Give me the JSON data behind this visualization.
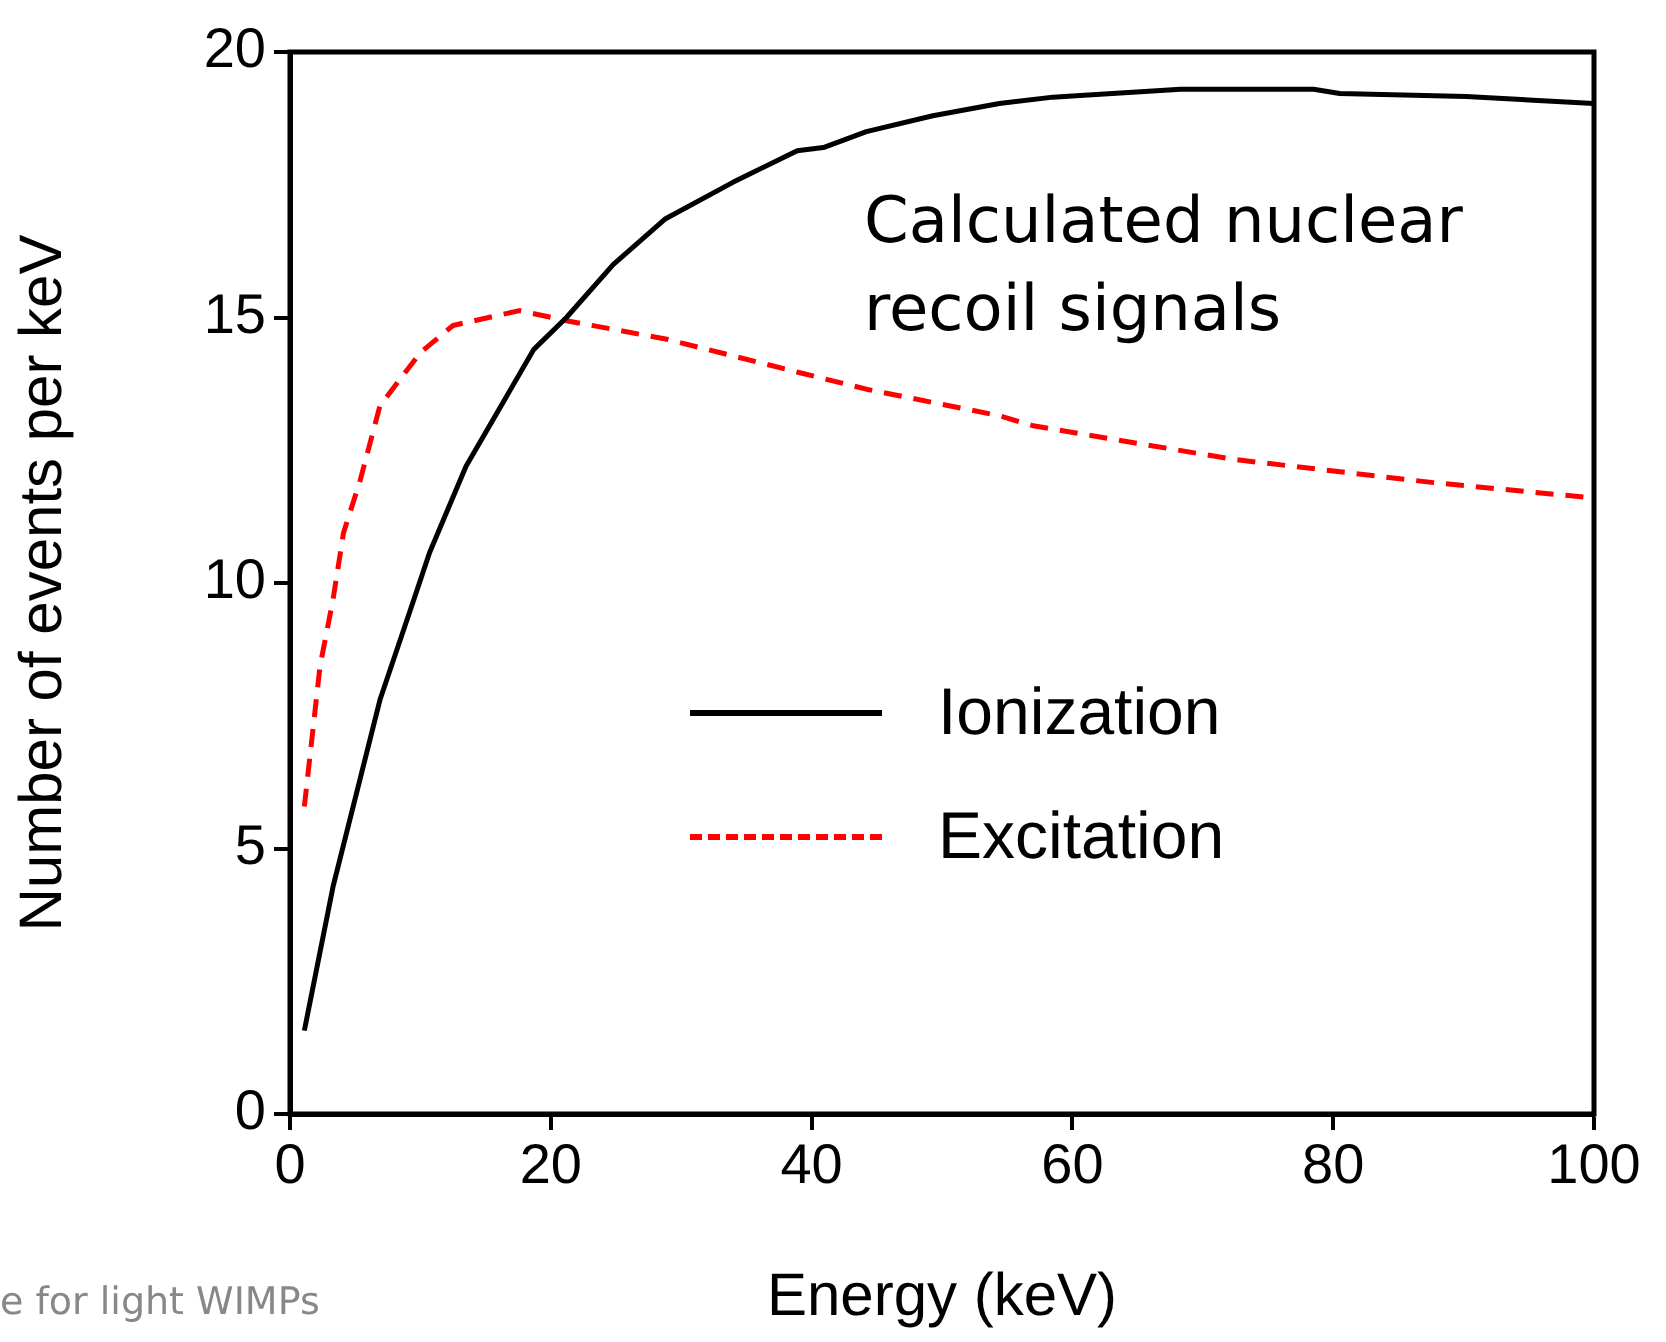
{
  "chart_data": {
    "type": "line",
    "xlabel": "Energy (keV)",
    "ylabel": "Number of events per keV",
    "xlim": [
      0,
      100
    ],
    "xticks": [
      0,
      20,
      40,
      60,
      80,
      100
    ],
    "ylim": [
      0,
      20
    ],
    "yticks": [
      0,
      5,
      10,
      15,
      20
    ],
    "grid": false,
    "legend": "right",
    "marker": "none",
    "annotations": [
      "Calculated nuclear recoil signals",
      "e for light WIMPs"
    ],
    "series": [
      {
        "name": "Ionization",
        "color": "#000000",
        "line_style": "solid",
        "x": [
          1.1,
          3.3,
          6.9,
          9.5,
          10.7,
          13.5,
          18.7,
          21.2,
          24.8,
          28.8,
          34,
          38.9,
          40.9,
          44.2,
          49.3,
          54.4,
          58.5,
          60.6,
          68.3,
          78.5,
          80.5,
          90.2,
          100
        ],
        "values": [
          1.57,
          4.28,
          7.8,
          9.69,
          10.57,
          12.2,
          14.4,
          15,
          16,
          16.86,
          17.55,
          18.14,
          18.2,
          18.5,
          18.8,
          19.03,
          19.15,
          19.18,
          19.3,
          19.3,
          19.22,
          19.16,
          19.03
        ]
      },
      {
        "name": "Excitation",
        "color": "#ff0000",
        "line_style": "dashed",
        "x": [
          1.1,
          2.3,
          3.3,
          4.1,
          5.4,
          6.9,
          10,
          12.5,
          17.6,
          21.2,
          28.9,
          39.1,
          44.2,
          54.4,
          57,
          72.3,
          87.7,
          100
        ],
        "values": [
          5.79,
          8.43,
          9.69,
          10.94,
          11.95,
          13.34,
          14.34,
          14.85,
          15.13,
          14.94,
          14.59,
          13.96,
          13.65,
          13.15,
          12.96,
          12.33,
          11.89,
          11.6
        ]
      }
    ]
  }
}
